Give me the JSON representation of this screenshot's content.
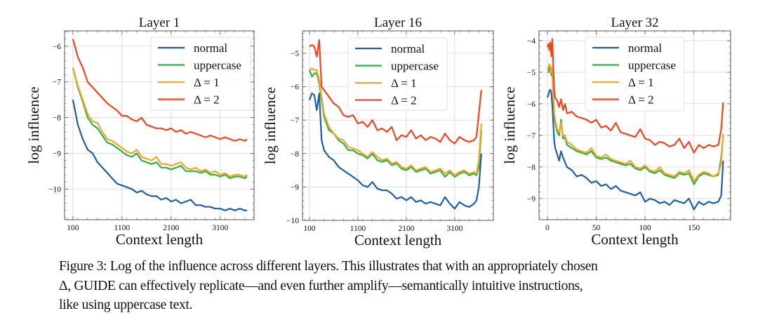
{
  "figure": {
    "caption_lines": [
      "Figure 3: Log of the influence across different layers. This illustrates that with an appropriately chosen",
      "Δ, GUIDE can effectively replicate—and even further amplify—semantically intuitive instructions,",
      "like using uppercase text."
    ]
  },
  "colors": {
    "normal": "#1f5fa8",
    "uppercase": "#2bb24c",
    "delta1": "#f5a623",
    "delta2": "#f2441d",
    "grid": "#d4d4d4",
    "axis": "#555555"
  },
  "chart_data": [
    {
      "type": "line",
      "title": "Layer 1",
      "xlabel": "Context length",
      "ylabel": "log influence",
      "xlim": [
        -70,
        3790
      ],
      "ylim": [
        -10.86,
        -5.57
      ],
      "xticks": [
        100,
        1100,
        2100,
        3100
      ],
      "xtick_labels": [
        "100",
        "1100",
        "2100",
        "3100"
      ],
      "yticks": [
        -10,
        -9,
        -8,
        -7,
        -6
      ],
      "ytick_labels": [
        "−10",
        "−9",
        "−8",
        "−7",
        "−6"
      ],
      "xminor_step": 200,
      "yminor_step": 0.2,
      "grid": true,
      "legend": "top-right",
      "x": [
        100,
        200,
        300,
        400,
        500,
        600,
        700,
        800,
        900,
        1000,
        1100,
        1200,
        1300,
        1400,
        1500,
        1600,
        1700,
        1800,
        1900,
        2000,
        2100,
        2200,
        2300,
        2400,
        2500,
        2600,
        2700,
        2800,
        2900,
        3000,
        3100,
        3200,
        3300,
        3400,
        3500,
        3600,
        3650
      ],
      "series": [
        {
          "name": "normal",
          "key": "normal",
          "values": [
            -7.5,
            -8.2,
            -8.6,
            -8.9,
            -9.0,
            -9.25,
            -9.4,
            -9.55,
            -9.7,
            -9.85,
            -9.9,
            -9.95,
            -10.0,
            -10.1,
            -10.05,
            -10.15,
            -10.2,
            -10.2,
            -10.3,
            -10.25,
            -10.35,
            -10.3,
            -10.4,
            -10.35,
            -10.3,
            -10.45,
            -10.45,
            -10.5,
            -10.5,
            -10.55,
            -10.55,
            -10.6,
            -10.55,
            -10.6,
            -10.55,
            -10.6,
            -10.6
          ]
        },
        {
          "name": "uppercase",
          "key": "uppercase",
          "values": [
            -6.6,
            -7.15,
            -7.55,
            -8.0,
            -8.2,
            -8.3,
            -8.5,
            -8.7,
            -8.75,
            -8.85,
            -8.95,
            -9.05,
            -9.1,
            -9.0,
            -9.2,
            -9.25,
            -9.3,
            -9.25,
            -9.4,
            -9.4,
            -9.45,
            -9.4,
            -9.35,
            -9.5,
            -9.5,
            -9.5,
            -9.55,
            -9.5,
            -9.6,
            -9.6,
            -9.65,
            -9.6,
            -9.7,
            -9.65,
            -9.65,
            -9.7,
            -9.65
          ]
        },
        {
          "name": "Δ = 1",
          "key": "delta1",
          "values": [
            -6.6,
            -7.1,
            -7.5,
            -7.9,
            -8.1,
            -8.15,
            -8.4,
            -8.6,
            -8.65,
            -8.75,
            -8.85,
            -8.95,
            -9.0,
            -8.9,
            -9.1,
            -9.15,
            -9.2,
            -9.1,
            -9.3,
            -9.3,
            -9.35,
            -9.3,
            -9.25,
            -9.4,
            -9.45,
            -9.4,
            -9.5,
            -9.45,
            -9.55,
            -9.5,
            -9.6,
            -9.55,
            -9.65,
            -9.6,
            -9.6,
            -9.65,
            -9.6
          ]
        },
        {
          "name": "Δ = 2",
          "key": "delta2",
          "values": [
            -5.8,
            -6.3,
            -6.6,
            -7.0,
            -7.15,
            -7.3,
            -7.45,
            -7.6,
            -7.7,
            -7.8,
            -7.95,
            -7.95,
            -8.05,
            -8.1,
            -8.0,
            -8.2,
            -8.25,
            -8.3,
            -8.3,
            -8.35,
            -8.3,
            -8.4,
            -8.35,
            -8.45,
            -8.4,
            -8.45,
            -8.5,
            -8.55,
            -8.5,
            -8.55,
            -8.6,
            -8.55,
            -8.6,
            -8.65,
            -8.6,
            -8.65,
            -8.6
          ]
        }
      ]
    },
    {
      "type": "line",
      "title": "Layer 16",
      "xlabel": "Context length",
      "ylabel": "log influence",
      "xlim": [
        -45,
        3900
      ],
      "ylim": [
        -10,
        -4.33
      ],
      "xticks": [
        100,
        1100,
        2100,
        3100
      ],
      "xtick_labels": [
        "100",
        "1100",
        "2100",
        "3100"
      ],
      "yticks": [
        -10,
        -9,
        -8,
        -7,
        -6,
        -5
      ],
      "ytick_labels": [
        "−10",
        "−9",
        "−8",
        "−7",
        "−6",
        "−5"
      ],
      "xminor_step": 200,
      "yminor_step": 0.2,
      "grid": true,
      "legend": "top-center",
      "x": [
        100,
        150,
        200,
        250,
        300,
        350,
        400,
        500,
        600,
        700,
        800,
        900,
        1000,
        1100,
        1200,
        1300,
        1400,
        1500,
        1600,
        1700,
        1800,
        1900,
        2000,
        2100,
        2200,
        2300,
        2400,
        2500,
        2600,
        2700,
        2800,
        2900,
        3000,
        3100,
        3200,
        3300,
        3400,
        3500,
        3550,
        3600,
        3650
      ],
      "series": [
        {
          "name": "normal",
          "key": "normal",
          "values": [
            -6.4,
            -6.2,
            -6.25,
            -6.7,
            -6.2,
            -7.6,
            -7.9,
            -8.1,
            -8.2,
            -8.4,
            -8.5,
            -8.6,
            -8.7,
            -8.8,
            -8.95,
            -9.0,
            -8.85,
            -9.05,
            -9.1,
            -9.1,
            -9.2,
            -9.35,
            -9.3,
            -9.4,
            -9.3,
            -9.45,
            -9.4,
            -9.5,
            -9.45,
            -9.5,
            -9.55,
            -9.3,
            -9.5,
            -9.65,
            -9.45,
            -9.55,
            -9.6,
            -9.5,
            -9.4,
            -9.0,
            -8.0
          ]
        },
        {
          "name": "uppercase",
          "key": "uppercase",
          "values": [
            -5.5,
            -5.7,
            -5.6,
            -5.6,
            -5.9,
            -6.4,
            -6.9,
            -7.3,
            -7.4,
            -7.6,
            -7.7,
            -7.9,
            -7.9,
            -8.0,
            -8.05,
            -8.15,
            -8.0,
            -8.2,
            -8.25,
            -8.2,
            -8.35,
            -8.3,
            -8.45,
            -8.5,
            -8.4,
            -8.55,
            -8.5,
            -8.45,
            -8.6,
            -8.55,
            -8.5,
            -8.7,
            -8.55,
            -8.7,
            -8.6,
            -8.55,
            -8.65,
            -8.6,
            -8.65,
            -8.4,
            -7.3
          ]
        },
        {
          "name": "Δ = 1",
          "key": "delta1",
          "values": [
            -5.5,
            -5.45,
            -5.5,
            -5.5,
            -5.8,
            -6.3,
            -6.8,
            -7.2,
            -7.4,
            -7.55,
            -7.6,
            -7.8,
            -7.85,
            -7.9,
            -8.0,
            -8.1,
            -7.95,
            -8.1,
            -8.2,
            -8.15,
            -8.3,
            -8.25,
            -8.4,
            -8.45,
            -8.35,
            -8.5,
            -8.45,
            -8.4,
            -8.55,
            -8.5,
            -8.45,
            -8.6,
            -8.5,
            -8.65,
            -8.55,
            -8.5,
            -8.6,
            -8.55,
            -8.6,
            -8.2,
            -7.1
          ]
        },
        {
          "name": "Δ = 2",
          "key": "delta2",
          "values": [
            -4.8,
            -4.75,
            -4.8,
            -5.1,
            -4.6,
            -6.0,
            -6.1,
            -6.3,
            -6.5,
            -6.6,
            -6.85,
            -6.9,
            -6.85,
            -7.1,
            -7.05,
            -7.2,
            -7.0,
            -7.3,
            -7.25,
            -7.35,
            -7.2,
            -7.6,
            -7.45,
            -7.5,
            -7.3,
            -7.55,
            -7.45,
            -7.6,
            -7.5,
            -7.55,
            -7.65,
            -7.4,
            -7.6,
            -7.7,
            -7.5,
            -7.6,
            -7.65,
            -7.6,
            -7.5,
            -6.8,
            -6.1
          ]
        }
      ]
    },
    {
      "type": "line",
      "title": "Layer 32",
      "xlabel": "Context length",
      "ylabel": "log influence",
      "xlim": [
        -8.6,
        187.6
      ],
      "ylim": [
        -9.67,
        -3.69
      ],
      "xticks": [
        0,
        50,
        100,
        150
      ],
      "xtick_labels": [
        "0",
        "50",
        "100",
        "150"
      ],
      "yticks": [
        -9,
        -8,
        -7,
        -6,
        -5,
        -4
      ],
      "ytick_labels": [
        "−9",
        "−8",
        "−7",
        "−6",
        "−5",
        "−4"
      ],
      "xminor_step": 10,
      "yminor_step": 0.2,
      "grid": true,
      "legend": "top-center",
      "x": [
        0,
        1,
        2,
        3,
        4,
        5,
        6,
        7,
        8,
        10,
        12,
        14,
        16,
        18,
        20,
        25,
        30,
        35,
        40,
        45,
        50,
        55,
        60,
        65,
        70,
        75,
        80,
        85,
        90,
        95,
        100,
        105,
        110,
        115,
        120,
        125,
        130,
        135,
        140,
        145,
        150,
        155,
        160,
        165,
        170,
        175,
        178,
        180
      ],
      "series": [
        {
          "name": "normal",
          "key": "normal",
          "values": [
            -5.8,
            -5.7,
            -5.6,
            -5.55,
            -5.65,
            -6.05,
            -6.6,
            -7.2,
            -7.4,
            -7.6,
            -7.8,
            -7.5,
            -7.7,
            -7.85,
            -8.0,
            -8.1,
            -8.3,
            -8.25,
            -8.35,
            -8.5,
            -8.45,
            -8.6,
            -8.55,
            -8.7,
            -8.6,
            -8.75,
            -8.8,
            -8.85,
            -8.9,
            -8.8,
            -9.1,
            -9.0,
            -9.05,
            -9.15,
            -9.1,
            -9.2,
            -9.05,
            -9.1,
            -9.15,
            -9.0,
            -9.35,
            -9.1,
            -9.2,
            -9.1,
            -9.15,
            -9.1,
            -8.9,
            -7.8
          ]
        },
        {
          "name": "uppercase",
          "key": "uppercase",
          "values": [
            -5.0,
            -5.0,
            -4.85,
            -4.9,
            -5.1,
            -4.95,
            -5.7,
            -6.4,
            -6.6,
            -6.9,
            -7.0,
            -6.5,
            -7.1,
            -7.05,
            -7.3,
            -7.4,
            -7.5,
            -7.55,
            -7.6,
            -7.5,
            -7.7,
            -7.75,
            -7.7,
            -7.8,
            -7.85,
            -7.9,
            -7.95,
            -7.9,
            -8.05,
            -8.1,
            -8.0,
            -8.15,
            -8.2,
            -8.1,
            -8.25,
            -8.3,
            -8.35,
            -8.2,
            -8.25,
            -8.2,
            -8.55,
            -8.3,
            -8.2,
            -8.25,
            -8.3,
            -8.25,
            -7.7,
            -7.0
          ]
        },
        {
          "name": "Δ = 1",
          "key": "delta1",
          "values": [
            -4.9,
            -4.85,
            -4.75,
            -4.8,
            -5.0,
            -4.85,
            -5.6,
            -6.3,
            -6.5,
            -6.8,
            -6.9,
            -6.6,
            -7.0,
            -7.0,
            -7.2,
            -7.3,
            -7.45,
            -7.5,
            -7.55,
            -7.4,
            -7.65,
            -7.7,
            -7.6,
            -7.75,
            -7.8,
            -7.85,
            -7.9,
            -7.8,
            -8.0,
            -8.05,
            -7.95,
            -8.1,
            -8.15,
            -8.0,
            -8.2,
            -8.25,
            -8.3,
            -8.15,
            -8.2,
            -8.1,
            -8.45,
            -8.25,
            -8.15,
            -8.2,
            -8.3,
            -8.2,
            -7.9,
            -6.95
          ]
        },
        {
          "name": "Δ = 2",
          "key": "delta2",
          "values": [
            -4.2,
            -4.1,
            -4.3,
            -4.05,
            -4.5,
            -3.95,
            -4.8,
            -5.6,
            -5.8,
            -5.9,
            -6.1,
            -5.85,
            -6.2,
            -6.0,
            -6.3,
            -6.25,
            -6.4,
            -6.45,
            -6.5,
            -6.6,
            -6.5,
            -6.75,
            -6.7,
            -6.85,
            -6.6,
            -6.9,
            -6.95,
            -7.0,
            -7.05,
            -6.8,
            -7.1,
            -7.15,
            -7.3,
            -7.2,
            -7.25,
            -7.35,
            -7.3,
            -7.1,
            -7.4,
            -7.2,
            -7.55,
            -7.3,
            -7.4,
            -7.3,
            -7.35,
            -7.3,
            -6.8,
            -5.95
          ]
        }
      ]
    }
  ]
}
